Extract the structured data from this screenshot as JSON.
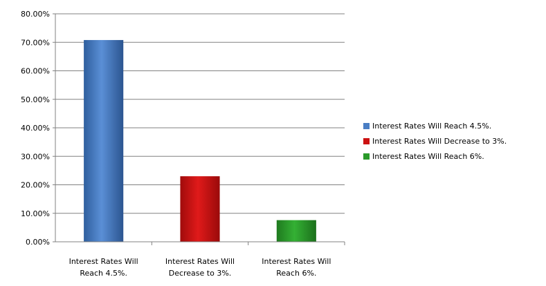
{
  "chart_data": {
    "type": "bar",
    "title": "",
    "xlabel": "",
    "ylabel": "",
    "ylim": [
      0,
      80
    ],
    "y_tick_labels": [
      "0.00%",
      "10.00%",
      "20.00%",
      "30.00%",
      "40.00%",
      "50.00%",
      "60.00%",
      "70.00%",
      "80.00%"
    ],
    "grid": "horizontal",
    "legend_position": "right",
    "categories": [
      {
        "line1": "Interest Rates Will",
        "line2": "Reach 4.5%."
      },
      {
        "line1": "Interest Rates Will",
        "line2": "Decrease to 3%."
      },
      {
        "line1": "Interest Rates Will",
        "line2": "Reach 6%."
      }
    ],
    "values": [
      70.8,
      23.0,
      7.6
    ],
    "colors": [
      "#4a7ec4",
      "#cc1111",
      "#2a9a2a"
    ],
    "legend": [
      "Interest Rates Will Reach 4.5%.",
      "Interest Rates Will Decrease to 3%.",
      "Interest Rates Will Reach 6%."
    ]
  }
}
